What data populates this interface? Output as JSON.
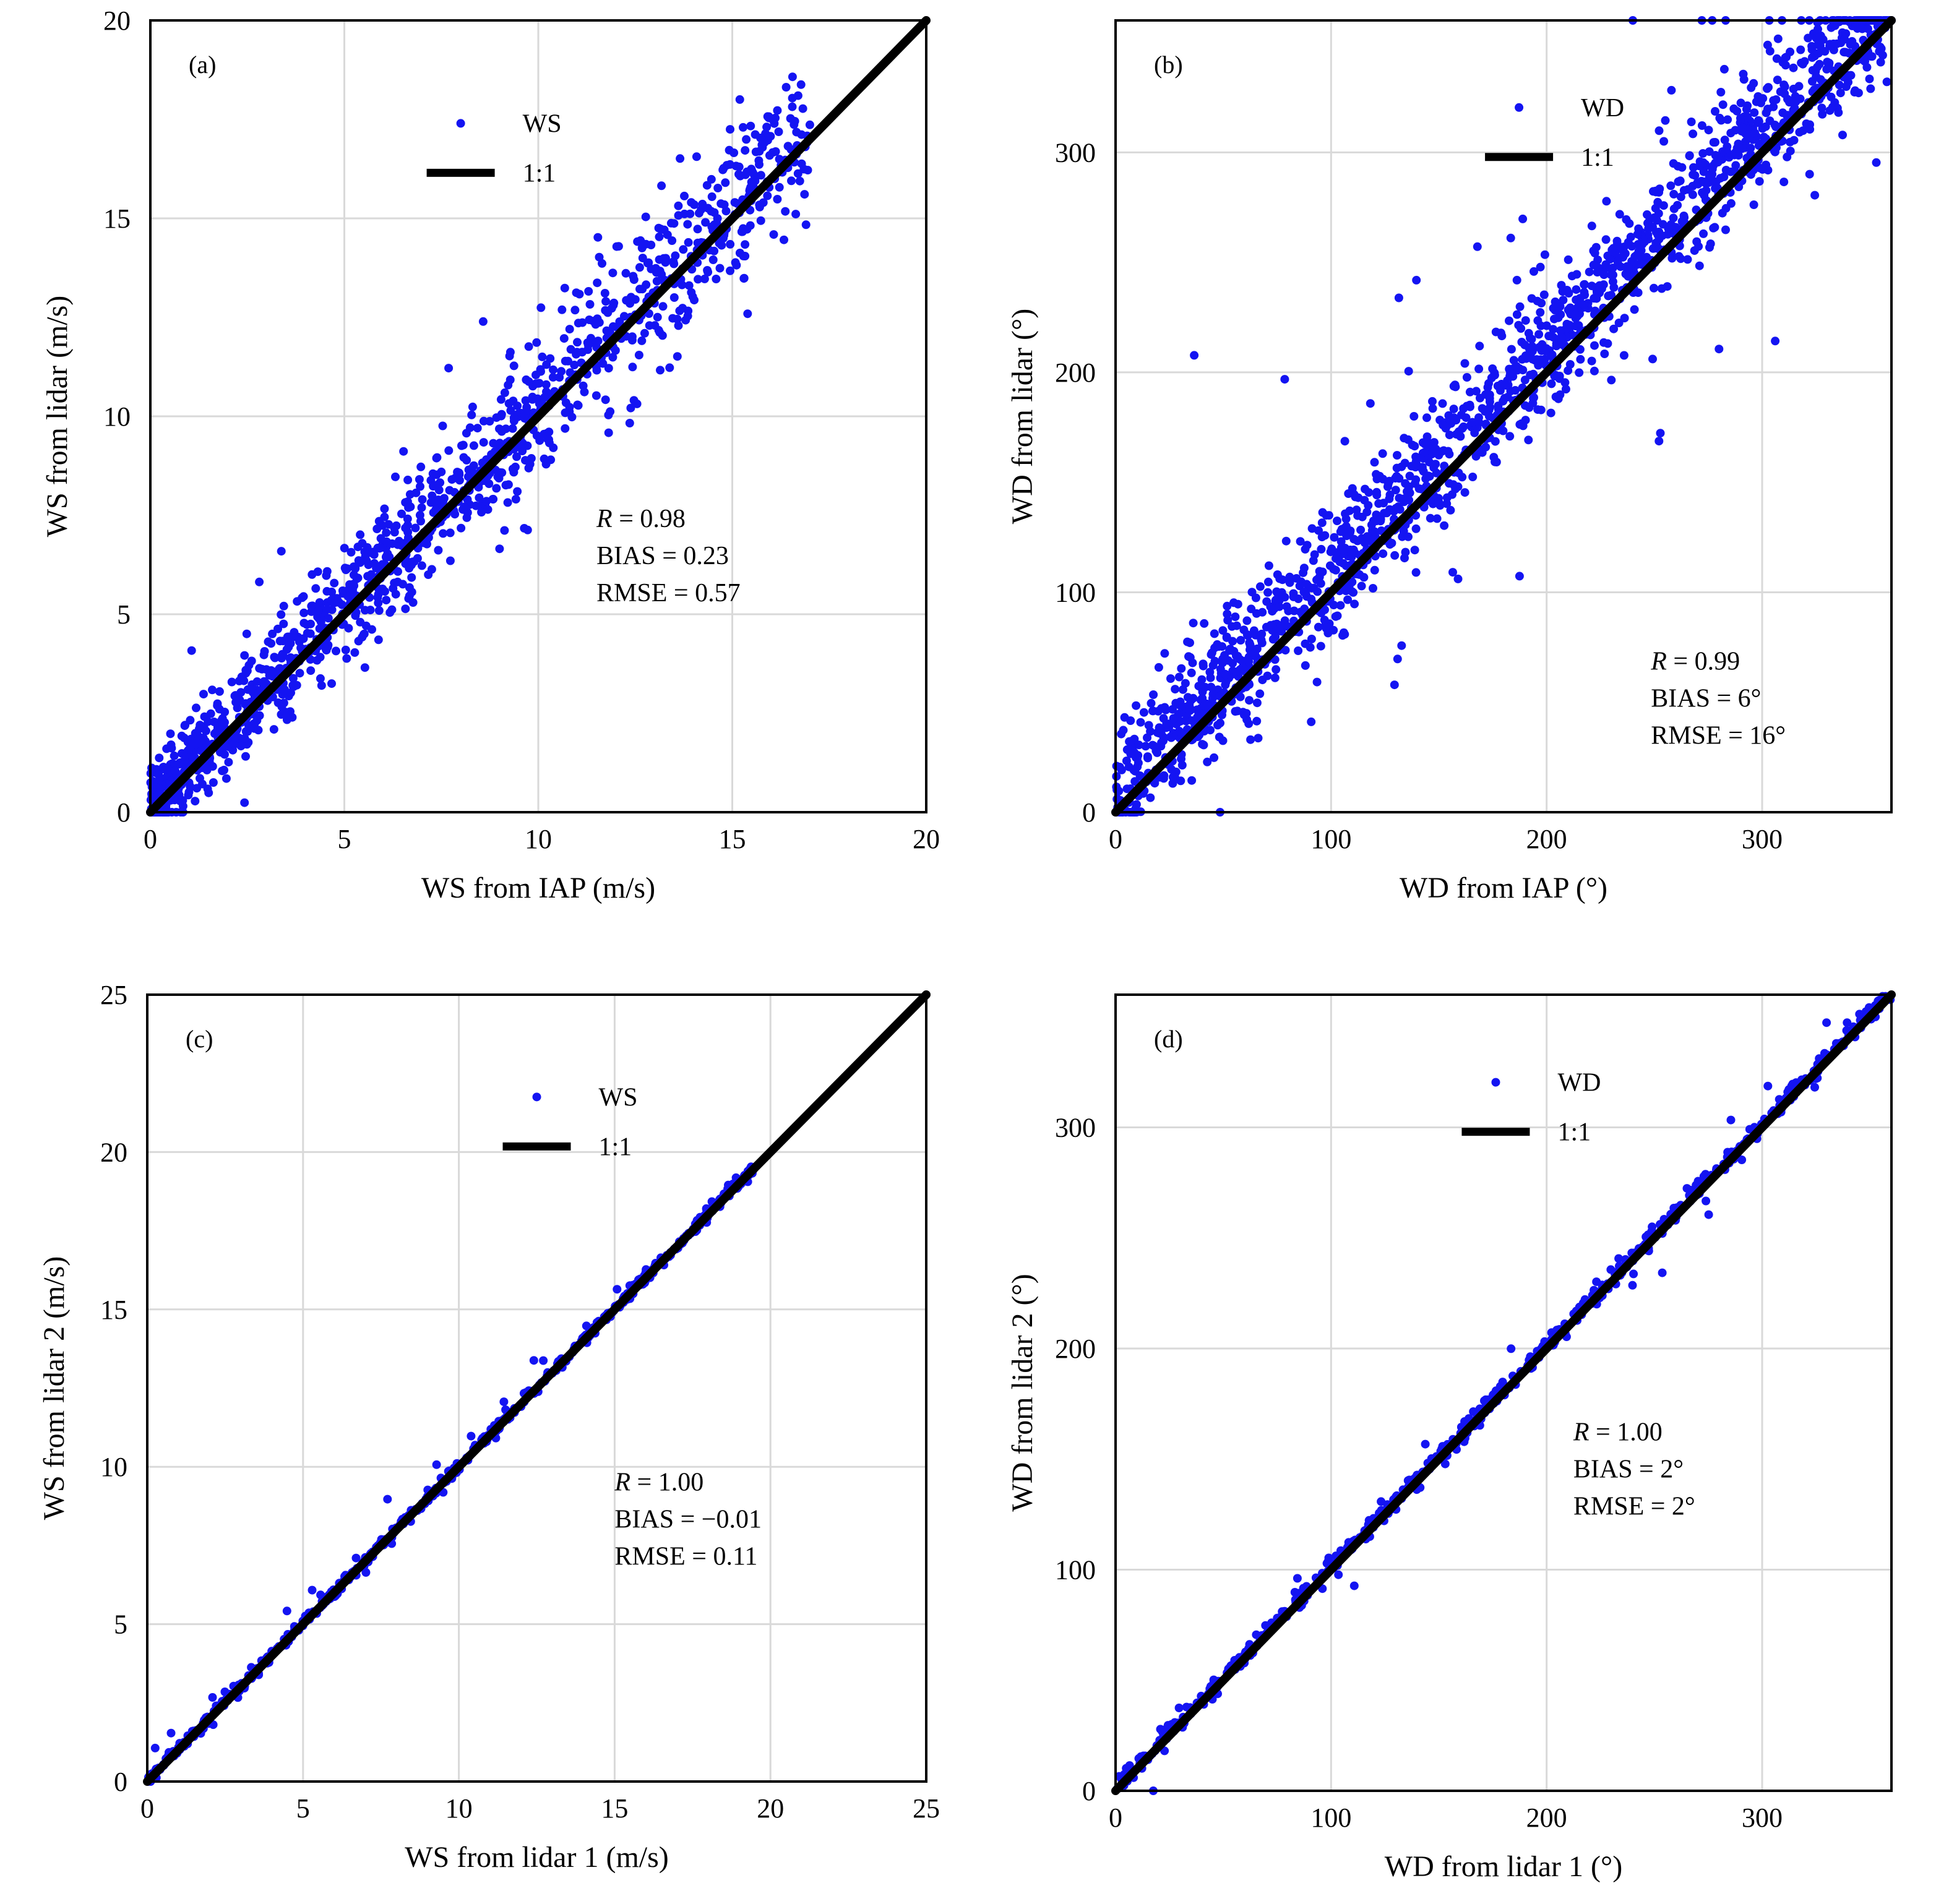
{
  "colors": {
    "point": "#1414f2",
    "line": "#000000",
    "grid": "#d9d9d9",
    "frame": "#000000"
  },
  "chart_data": [
    {
      "type": "scatter",
      "panel": "(a)",
      "xlabel": "WS from IAP (m/s)",
      "ylabel": "WS from lidar (m/s)",
      "xlim": [
        0,
        20
      ],
      "ylim": [
        0,
        20
      ],
      "xticks": [
        0,
        5,
        10,
        15,
        20
      ],
      "yticks": [
        0,
        5,
        10,
        15,
        20
      ],
      "legend": [
        "WS",
        "1:1"
      ],
      "legend_position": "top-center",
      "reference_line": [
        [
          0,
          0
        ],
        [
          20,
          20
        ]
      ],
      "stats": {
        "r_symbol": "R",
        "r_text": " = 0.98",
        "bias": "BIAS = 0.23",
        "rmse": "RMSE = 0.57"
      },
      "stats_position": "center-right",
      "scatter_model": {
        "kind": "linear",
        "n": 1300,
        "x_min": 0,
        "x_max": 17,
        "x_skew": 1.4,
        "bias": 0.23,
        "noise": 0.55,
        "noise_growth": 0.03,
        "outlier_frac": 0.04,
        "outlier_noise": 1.5,
        "outlier_bias": 0.6
      }
    },
    {
      "type": "scatter",
      "panel": "(b)",
      "xlabel": "WD from IAP (°)",
      "ylabel": "WD from lidar (°)",
      "xlim": [
        0,
        360
      ],
      "ylim": [
        0,
        360
      ],
      "xticks": [
        0,
        100,
        200,
        300
      ],
      "yticks": [
        0,
        100,
        200,
        300
      ],
      "legend": [
        "WD",
        "1:1"
      ],
      "legend_position": "top-center",
      "reference_line": [
        [
          0,
          0
        ],
        [
          360,
          360
        ]
      ],
      "stats": {
        "r_symbol": "R",
        "r_text": " = 0.99",
        "bias": "BIAS = 6°",
        "rmse": "RMSE = 16°"
      },
      "stats_position": "lower-right",
      "scatter_model": {
        "kind": "linear",
        "n": 1700,
        "x_min": 0,
        "x_max": 360,
        "x_skew": 1.0,
        "bias": 10,
        "noise": 14,
        "noise_growth": 0,
        "outlier_frac": 0.06,
        "outlier_noise": 60,
        "outlier_bias": 15
      }
    },
    {
      "type": "scatter",
      "panel": "(c)",
      "xlabel": "WS from lidar 1 (m/s)",
      "ylabel": "WS from lidar 2 (m/s)",
      "xlim": [
        0,
        25
      ],
      "ylim": [
        0,
        25
      ],
      "xticks": [
        0,
        5,
        10,
        15,
        20,
        25
      ],
      "yticks": [
        0,
        5,
        10,
        15,
        20,
        25
      ],
      "legend": [
        "WS",
        "1:1"
      ],
      "legend_position": "top-center",
      "reference_line": [
        [
          0,
          0
        ],
        [
          25,
          25
        ]
      ],
      "stats": {
        "r_symbol": "R",
        "r_text": " = 1.00",
        "bias": "BIAS = −0.01",
        "rmse": "RMSE = 0.11"
      },
      "stats_position": "center-right",
      "scatter_model": {
        "kind": "linear",
        "n": 650,
        "x_min": 0,
        "x_max": 19.6,
        "x_skew": 1.0,
        "bias": 0.02,
        "noise": 0.09,
        "noise_growth": 0,
        "outlier_frac": 0.05,
        "outlier_noise": 0.6,
        "outlier_bias": 0.4
      }
    },
    {
      "type": "scatter",
      "panel": "(d)",
      "xlabel": "WD from lidar 1 (°)",
      "ylabel": "WD from lidar 2 (°)",
      "xlim": [
        0,
        360
      ],
      "ylim": [
        0,
        360
      ],
      "xticks": [
        0,
        100,
        200,
        300
      ],
      "yticks": [
        0,
        100,
        200,
        300
      ],
      "legend": [
        "WD",
        "1:1"
      ],
      "legend_position": "top-center",
      "reference_line": [
        [
          0,
          0
        ],
        [
          360,
          360
        ]
      ],
      "stats": {
        "r_symbol": "R",
        "r_text": " = 1.00",
        "bias": "BIAS = 2°",
        "rmse": "RMSE = 2°"
      },
      "stats_position": "center-right",
      "scatter_model": {
        "kind": "linear",
        "n": 650,
        "x_min": 0,
        "x_max": 360,
        "x_skew": 1.0,
        "bias": 1.5,
        "noise": 2,
        "noise_growth": 0,
        "outlier_frac": 0.06,
        "outlier_noise": 10,
        "outlier_bias": 3
      }
    }
  ]
}
